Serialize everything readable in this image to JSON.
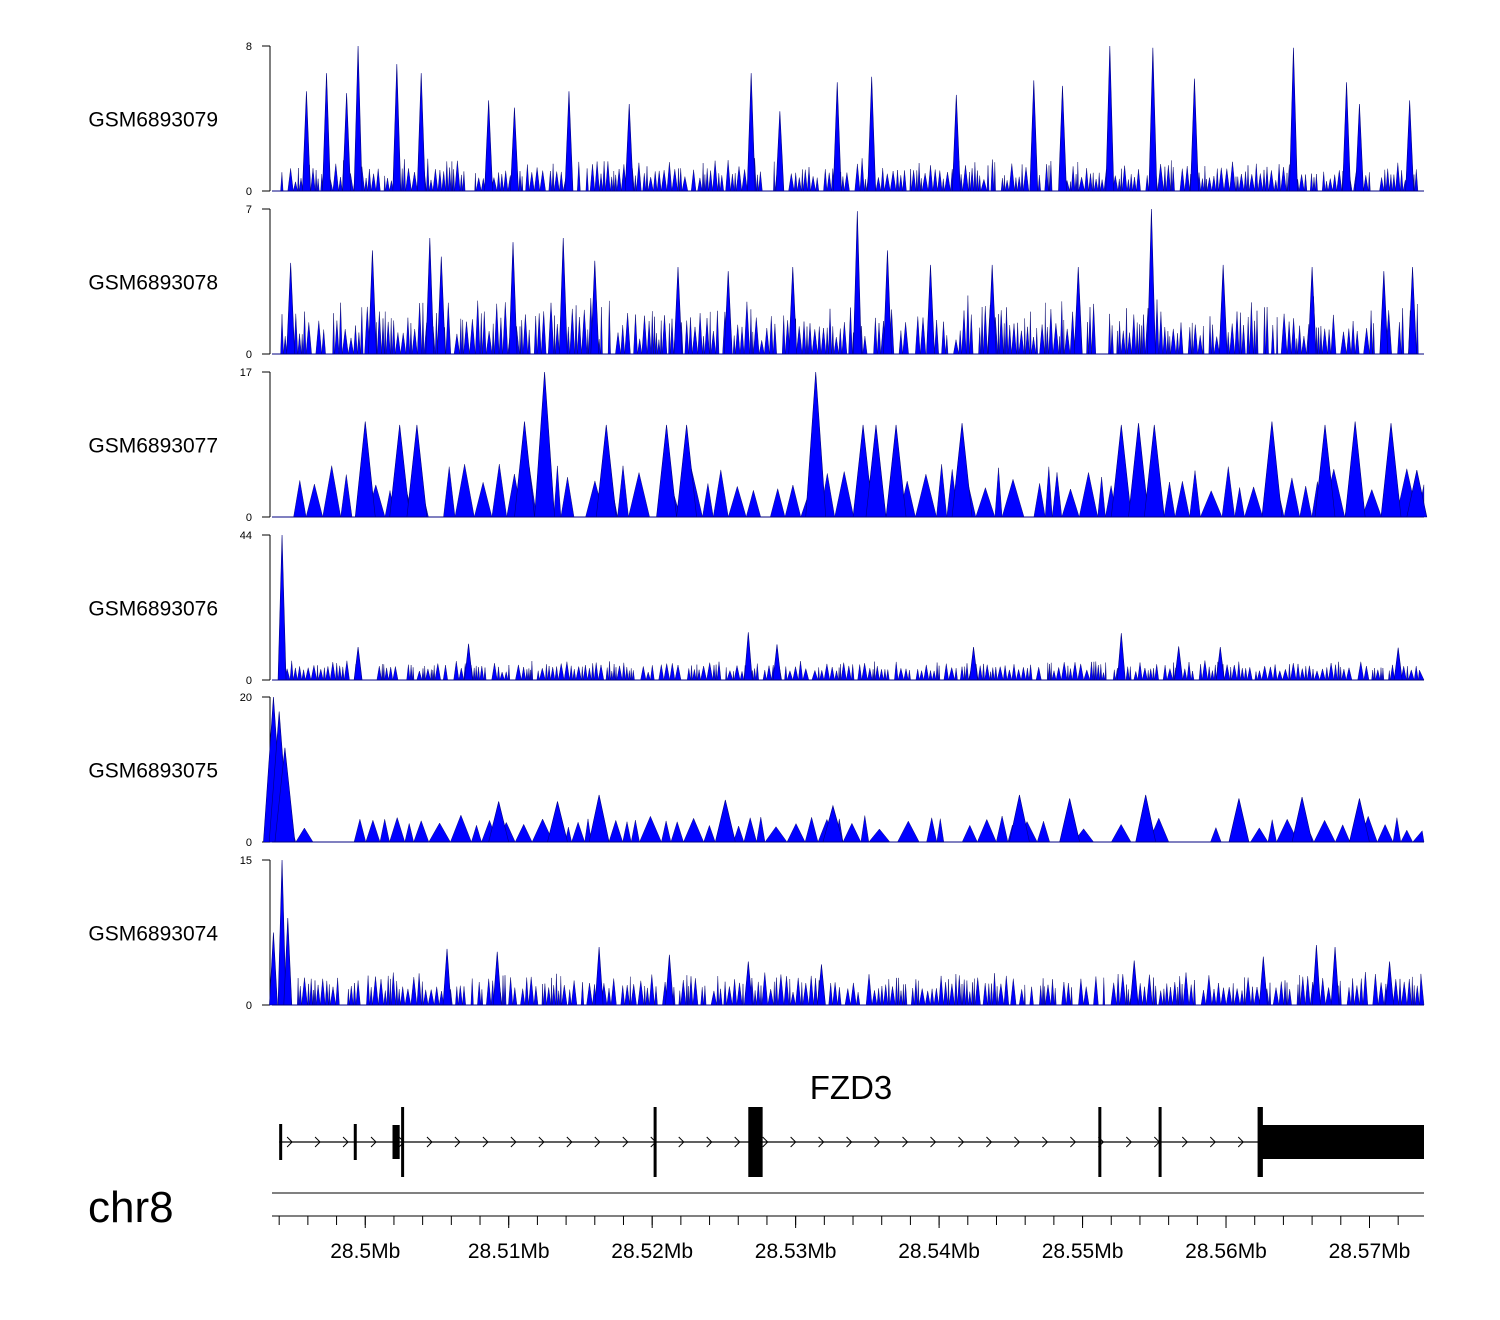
{
  "chart_data": {
    "type": "area",
    "title": "",
    "chromosome": "chr8",
    "xlim_mb": [
      28.4935,
      28.5738
    ],
    "fill_color": "#0000ff",
    "tracks": [
      {
        "name": "GSM6893079",
        "ymax": 8,
        "yticks": [
          "0",
          "8"
        ],
        "peaks": [
          [
            28.4959,
            5.5
          ],
          [
            28.4973,
            6.5
          ],
          [
            28.4987,
            5.4
          ],
          [
            28.4995,
            8.0
          ],
          [
            28.5022,
            7.0
          ],
          [
            28.5039,
            6.5
          ],
          [
            28.5086,
            5.0
          ],
          [
            28.5104,
            4.6
          ],
          [
            28.5142,
            5.5
          ],
          [
            28.5184,
            4.8
          ],
          [
            28.5269,
            6.5
          ],
          [
            28.5289,
            4.4
          ],
          [
            28.5329,
            6.0
          ],
          [
            28.5353,
            6.3
          ],
          [
            28.5412,
            5.3
          ],
          [
            28.5466,
            6.1
          ],
          [
            28.5486,
            5.8
          ],
          [
            28.5519,
            8.0
          ],
          [
            28.5549,
            7.9
          ],
          [
            28.5578,
            6.2
          ],
          [
            28.5647,
            7.9
          ],
          [
            28.5684,
            6.0
          ],
          [
            28.5693,
            4.8
          ],
          [
            28.5728,
            5.0
          ]
        ],
        "baseline_values": [
          1.5,
          0,
          1.2,
          0,
          1.6,
          0,
          0.9,
          0,
          1.3,
          0,
          1.6,
          0,
          1.1,
          0,
          1.5,
          0,
          1.0,
          0,
          1.6,
          0,
          1.3,
          0
        ]
      },
      {
        "name": "GSM6893078",
        "ymax": 7,
        "yticks": [
          "0",
          "7"
        ],
        "peaks": [
          [
            28.4948,
            4.4
          ],
          [
            28.5005,
            5.0
          ],
          [
            28.5045,
            5.6
          ],
          [
            28.5053,
            4.7
          ],
          [
            28.5103,
            5.4
          ],
          [
            28.5138,
            5.6
          ],
          [
            28.516,
            4.5
          ],
          [
            28.5218,
            4.2
          ],
          [
            28.5253,
            4.0
          ],
          [
            28.5298,
            4.2
          ],
          [
            28.5343,
            6.9
          ],
          [
            28.5364,
            5.0
          ],
          [
            28.5394,
            4.3
          ],
          [
            28.5437,
            4.3
          ],
          [
            28.5497,
            4.2
          ],
          [
            28.5548,
            7.0
          ],
          [
            28.5598,
            4.3
          ],
          [
            28.566,
            4.2
          ],
          [
            28.571,
            4.0
          ],
          [
            28.573,
            4.2
          ]
        ],
        "baseline_values": [
          1.8,
          0,
          2.2,
          0,
          1.3,
          0,
          2.5,
          0,
          1.8,
          0,
          2.2,
          0,
          1.1,
          0,
          2.0,
          0,
          2.4,
          0,
          1.6,
          0
        ]
      },
      {
        "name": "GSM6893077",
        "ymax": 17,
        "yticks": [
          "0",
          "17"
        ],
        "peaks": [
          [
            28.5,
            11.2
          ],
          [
            28.5024,
            10.8
          ],
          [
            28.5036,
            10.8
          ],
          [
            28.5111,
            11.2
          ],
          [
            28.5125,
            17.0
          ],
          [
            28.5168,
            10.8
          ],
          [
            28.521,
            10.8
          ],
          [
            28.5224,
            10.8
          ],
          [
            28.5314,
            17.0
          ],
          [
            28.5347,
            10.8
          ],
          [
            28.5356,
            10.8
          ],
          [
            28.537,
            10.8
          ],
          [
            28.5416,
            11.0
          ],
          [
            28.5527,
            10.8
          ],
          [
            28.5539,
            11.0
          ],
          [
            28.555,
            10.8
          ],
          [
            28.5632,
            11.2
          ],
          [
            28.5669,
            10.8
          ],
          [
            28.569,
            11.2
          ],
          [
            28.5715,
            11.0
          ],
          [
            28.5733,
            5.5
          ]
        ],
        "baseline_values": [
          5.5,
          0,
          5.5,
          0,
          5.5,
          0,
          5.5,
          0,
          5.5,
          0,
          5.5,
          0
        ]
      },
      {
        "name": "GSM6893076",
        "ymax": 44,
        "yticks": [
          "0",
          "44"
        ],
        "peaks": [
          [
            28.4942,
            44.0
          ],
          [
            28.4995,
            10.0
          ],
          [
            28.5072,
            11.0
          ],
          [
            28.5267,
            14.5
          ],
          [
            28.5287,
            10.8
          ],
          [
            28.5424,
            10.0
          ],
          [
            28.5527,
            14.2
          ],
          [
            28.5567,
            10.2
          ],
          [
            28.5596,
            10.0
          ],
          [
            28.572,
            9.8
          ]
        ],
        "baseline_values": [
          5.0,
          0,
          4.6,
          0,
          5.2,
          0,
          4.0,
          0,
          5.0,
          0,
          4.4,
          0,
          5.1,
          0,
          4.8,
          0
        ]
      },
      {
        "name": "GSM6893075",
        "ymax": 20,
        "yticks": [
          "0",
          "20"
        ],
        "peaks": [
          [
            28.4936,
            20.0
          ],
          [
            28.494,
            18.0
          ],
          [
            28.4944,
            13.0
          ],
          [
            28.5093,
            5.6
          ],
          [
            28.5134,
            5.6
          ],
          [
            28.5163,
            6.5
          ],
          [
            28.5251,
            5.8
          ],
          [
            28.5326,
            5.0
          ],
          [
            28.5456,
            6.5
          ],
          [
            28.5491,
            6.0
          ],
          [
            28.5544,
            6.5
          ],
          [
            28.5609,
            6.0
          ],
          [
            28.5653,
            6.2
          ],
          [
            28.5693,
            6.0
          ]
        ],
        "baseline_values": [
          3.0,
          0,
          3.2,
          0,
          2.8,
          0,
          3.4,
          0,
          3.0,
          0,
          3.2,
          0
        ]
      },
      {
        "name": "GSM6893074",
        "ymax": 15,
        "yticks": [
          "0",
          "15"
        ],
        "peaks": [
          [
            28.4936,
            7.5
          ],
          [
            28.4942,
            15.0
          ],
          [
            28.4946,
            9.0
          ],
          [
            28.5057,
            5.8
          ],
          [
            28.5092,
            5.5
          ],
          [
            28.5163,
            6.0
          ],
          [
            28.5212,
            5.2
          ],
          [
            28.5267,
            4.5
          ],
          [
            28.5318,
            4.2
          ],
          [
            28.5536,
            4.6
          ],
          [
            28.5626,
            5.0
          ],
          [
            28.5663,
            6.2
          ],
          [
            28.5676,
            6.0
          ],
          [
            28.5714,
            4.5
          ]
        ],
        "baseline_values": [
          2.6,
          0,
          2.8,
          0,
          2.4,
          0,
          3.0,
          0,
          2.6,
          0,
          2.7,
          0
        ]
      }
    ],
    "gene": {
      "name": "FZD3",
      "strand": "+",
      "start_mb": 28.494,
      "end_mb": 28.5738,
      "exons_mb": [
        [
          28.494,
          28.4942
        ],
        [
          28.4992,
          28.4993
        ],
        [
          28.5019,
          28.5024
        ],
        [
          28.5025,
          28.5027
        ],
        [
          28.5201,
          28.5202
        ],
        [
          28.5267,
          28.5277
        ],
        [
          28.5511,
          28.5512
        ],
        [
          28.5553,
          28.5554
        ],
        [
          28.5622,
          28.5623
        ]
      ],
      "thick_end_exon_mb": [
        28.5625,
        28.5738
      ]
    },
    "x_axis": {
      "ticks_mb": [
        28.5,
        28.51,
        28.52,
        28.53,
        28.54,
        28.55,
        28.56,
        28.57
      ],
      "tick_labels": [
        "28.5Mb",
        "28.51Mb",
        "28.52Mb",
        "28.53Mb",
        "28.54Mb",
        "28.55Mb",
        "28.56Mb",
        "28.57Mb"
      ],
      "minor_step_mb": 0.002
    }
  }
}
